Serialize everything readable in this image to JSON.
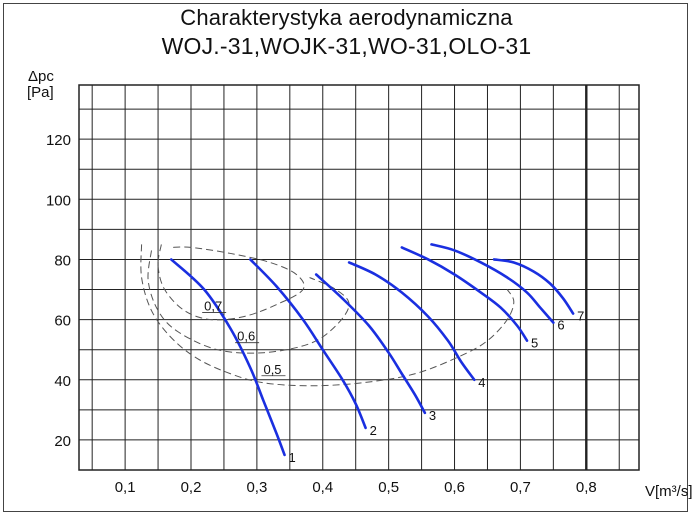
{
  "chart_data": {
    "type": "line",
    "title": [
      "Charakterystyka aerodynamiczna",
      "WOJ.-31,WOJK-31,WO-31,OLO-31"
    ],
    "ylabel": [
      "Δpc",
      "[Pa]"
    ],
    "xlabel": "V[m³/s]",
    "xticks": [
      "0,1",
      "0,2",
      "0,3",
      "0,4",
      "0,5",
      "0,6",
      "0,7",
      "0,8"
    ],
    "yticks": [
      "20",
      "40",
      "60",
      "80",
      "100",
      "120"
    ],
    "xlim": [
      0.03,
      0.88
    ],
    "ylim": [
      10,
      138
    ],
    "grid": true,
    "bold_x_line": 0.8,
    "series": [
      {
        "name": "1",
        "points": [
          [
            0.17,
            80
          ],
          [
            0.22,
            70
          ],
          [
            0.26,
            57
          ],
          [
            0.29,
            44
          ],
          [
            0.31,
            33
          ],
          [
            0.33,
            22
          ],
          [
            0.342,
            15
          ]
        ]
      },
      {
        "name": "2",
        "points": [
          [
            0.29,
            80
          ],
          [
            0.33,
            71
          ],
          [
            0.37,
            60
          ],
          [
            0.4,
            50
          ],
          [
            0.43,
            40
          ],
          [
            0.45,
            32
          ],
          [
            0.465,
            24
          ]
        ]
      },
      {
        "name": "3",
        "points": [
          [
            0.39,
            75
          ],
          [
            0.43,
            67
          ],
          [
            0.47,
            58
          ],
          [
            0.5,
            49
          ],
          [
            0.52,
            42
          ],
          [
            0.54,
            35
          ],
          [
            0.555,
            29
          ]
        ]
      },
      {
        "name": "4",
        "points": [
          [
            0.44,
            79
          ],
          [
            0.48,
            75
          ],
          [
            0.52,
            69
          ],
          [
            0.56,
            61
          ],
          [
            0.59,
            53
          ],
          [
            0.61,
            46
          ],
          [
            0.63,
            40
          ]
        ]
      },
      {
        "name": "5",
        "points": [
          [
            0.52,
            84
          ],
          [
            0.56,
            80
          ],
          [
            0.6,
            75
          ],
          [
            0.64,
            69
          ],
          [
            0.67,
            64
          ],
          [
            0.695,
            58
          ],
          [
            0.71,
            53
          ]
        ]
      },
      {
        "name": "6",
        "points": [
          [
            0.565,
            85
          ],
          [
            0.6,
            83
          ],
          [
            0.64,
            79
          ],
          [
            0.68,
            74
          ],
          [
            0.71,
            69
          ],
          [
            0.73,
            64
          ],
          [
            0.75,
            59
          ]
        ]
      },
      {
        "name": "7",
        "points": [
          [
            0.66,
            80
          ],
          [
            0.69,
            79
          ],
          [
            0.72,
            76
          ],
          [
            0.745,
            72
          ],
          [
            0.765,
            67
          ],
          [
            0.78,
            62
          ]
        ]
      }
    ],
    "efficiency_labels": [
      "0,7",
      "0,6",
      "0,5"
    ],
    "efficiency_contours": [
      {
        "label": "0,7",
        "points": [
          [
            0.155,
            85
          ],
          [
            0.15,
            78
          ],
          [
            0.16,
            70
          ],
          [
            0.19,
            63
          ],
          [
            0.23,
            60
          ],
          [
            0.28,
            61
          ],
          [
            0.33,
            65
          ],
          [
            0.37,
            70
          ],
          [
            0.36,
            75
          ],
          [
            0.32,
            79
          ],
          [
            0.26,
            82
          ],
          [
            0.2,
            84
          ],
          [
            0.17,
            84
          ]
        ]
      },
      {
        "label": "0,6",
        "points": [
          [
            0.14,
            83
          ],
          [
            0.135,
            73
          ],
          [
            0.15,
            63
          ],
          [
            0.18,
            56
          ],
          [
            0.24,
            50
          ],
          [
            0.31,
            49
          ],
          [
            0.38,
            52
          ],
          [
            0.42,
            58
          ],
          [
            0.44,
            65
          ],
          [
            0.42,
            70
          ],
          [
            0.38,
            74
          ]
        ]
      },
      {
        "label": "0,5",
        "points": [
          [
            0.125,
            85
          ],
          [
            0.125,
            74
          ],
          [
            0.14,
            63
          ],
          [
            0.17,
            54
          ],
          [
            0.21,
            47
          ],
          [
            0.26,
            42
          ],
          [
            0.31,
            39
          ],
          [
            0.38,
            38
          ],
          [
            0.46,
            39
          ],
          [
            0.54,
            42
          ],
          [
            0.61,
            48
          ],
          [
            0.65,
            53
          ],
          [
            0.68,
            60
          ],
          [
            0.69,
            66
          ],
          [
            0.68,
            70
          ]
        ]
      }
    ]
  }
}
